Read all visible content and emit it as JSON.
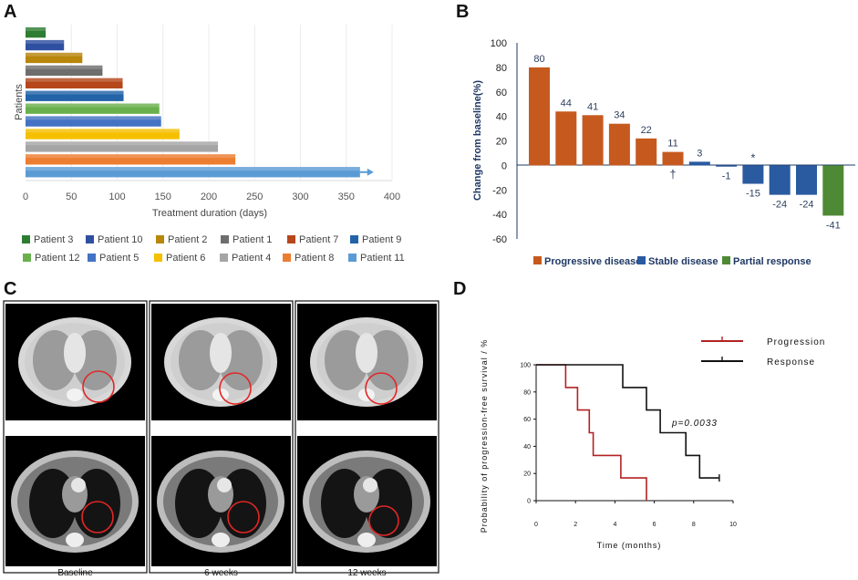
{
  "panels": {
    "a": {
      "letter": "A"
    },
    "b": {
      "letter": "B"
    },
    "c": {
      "letter": "C"
    },
    "d": {
      "letter": "D"
    }
  },
  "chart_data": [
    {
      "id": "A",
      "type": "bar",
      "orientation": "horizontal",
      "xlabel": "Treatment duration (days)",
      "ylabel": "Patients",
      "xlim": [
        0,
        400
      ],
      "xticks": [
        0,
        50,
        100,
        150,
        200,
        250,
        300,
        350,
        400
      ],
      "bars": [
        {
          "name": "Patient 3",
          "value": 22,
          "color": "#2e7d32"
        },
        {
          "name": "Patient 10",
          "value": 42,
          "color": "#2f4fa0"
        },
        {
          "name": "Patient 2",
          "value": 62,
          "color": "#b8860b"
        },
        {
          "name": "Patient 1",
          "value": 84,
          "color": "#6e6e6e"
        },
        {
          "name": "Patient 7",
          "value": 106,
          "color": "#b5471b"
        },
        {
          "name": "Patient 9",
          "value": 107,
          "color": "#2363a8"
        },
        {
          "name": "Patient 12",
          "value": 146,
          "color": "#6ab04c"
        },
        {
          "name": "Patient 5",
          "value": 148,
          "color": "#4472c4"
        },
        {
          "name": "Patient 6",
          "value": 168,
          "color": "#f5c000"
        },
        {
          "name": "Patient 4",
          "value": 210,
          "color": "#a5a5a5"
        },
        {
          "name": "Patient 8",
          "value": 229,
          "color": "#ed7d31"
        },
        {
          "name": "Patient 11",
          "value": 365,
          "color": "#5b9bd5",
          "ongoing": true
        }
      ]
    },
    {
      "id": "B",
      "type": "bar",
      "ylabel": "Change from baseline(%)",
      "ylim": [
        -60,
        100
      ],
      "yticks": [
        100,
        80,
        60,
        40,
        20,
        0,
        -20,
        -40,
        -60
      ],
      "values": [
        80,
        44,
        41,
        34,
        22,
        11,
        3,
        -1,
        -15,
        -24,
        -24,
        -41
      ],
      "labels": [
        "80",
        "44",
        "41",
        "34",
        "22",
        "11",
        "3",
        "-1",
        "-15",
        "-24",
        "-24",
        "-41"
      ],
      "categories_status": [
        "Progressive disease",
        "Progressive disease",
        "Progressive disease",
        "Progressive disease",
        "Progressive disease",
        "Progressive disease",
        "Stable disease",
        "Stable disease",
        "Stable disease",
        "Stable disease",
        "Stable disease",
        "Partial response"
      ],
      "markers": [
        {
          "index": 5,
          "symbol": "†"
        },
        {
          "index": 8,
          "symbol": "*"
        }
      ],
      "legend": [
        {
          "name": "Progressive disease",
          "color": "#c65a1e"
        },
        {
          "name": "Stable disease",
          "color": "#2a5aa0"
        },
        {
          "name": "Partial response",
          "color": "#4e8a35"
        }
      ]
    },
    {
      "id": "D",
      "type": "line",
      "subtype": "kaplan-meier",
      "xlabel": "Time (months)",
      "ylabel": "Probability of progression-free survival / %",
      "xlim": [
        0,
        10
      ],
      "ylim": [
        0,
        100
      ],
      "xticks": [
        0,
        2,
        4,
        6,
        8,
        10
      ],
      "yticks": [
        0,
        20,
        40,
        60,
        80,
        100
      ],
      "annotation": "p=0.0033",
      "series": [
        {
          "name": "Progression",
          "color": "#b22222",
          "x": [
            0,
            1.5,
            1.5,
            2.1,
            2.1,
            2.7,
            2.7,
            2.9,
            2.9,
            4.3,
            4.3,
            5.6,
            5.6
          ],
          "y": [
            100,
            100,
            83.3,
            83.3,
            66.7,
            66.7,
            50,
            50,
            33.3,
            33.3,
            16.7,
            16.7,
            0
          ]
        },
        {
          "name": "Response",
          "color": "#111111",
          "x": [
            0,
            4.4,
            4.4,
            5.6,
            5.6,
            6.3,
            6.3,
            7.6,
            7.6,
            8.3,
            8.3,
            9.3
          ],
          "y": [
            100,
            100,
            83.3,
            83.3,
            66.7,
            66.7,
            50,
            50,
            33.3,
            33.3,
            16.7,
            16.7
          ],
          "censor": [
            {
              "x": 9.3,
              "y": 16.7
            }
          ]
        }
      ]
    }
  ],
  "scans": {
    "captions": [
      "Baseline",
      "6 weeks",
      "12 weeks"
    ]
  },
  "colors": {
    "lesion_circle": "#e32626",
    "axis_blue": "#1f3864"
  }
}
